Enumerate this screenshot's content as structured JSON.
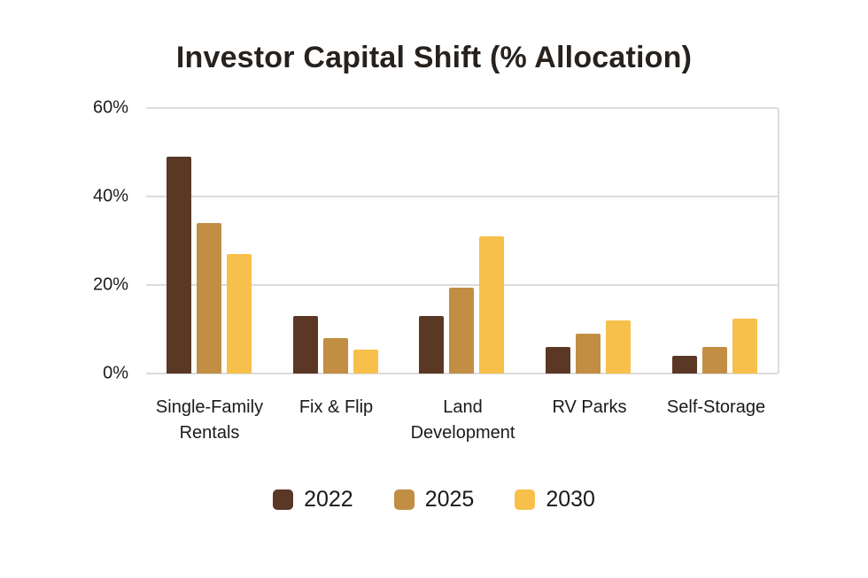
{
  "chart_data": {
    "type": "bar",
    "title": "Investor Capital Shift (% Allocation)",
    "categories": [
      "Single-Family Rentals",
      "Fix & Flip",
      "Land Development",
      "RV Parks",
      "Self-Storage"
    ],
    "series": [
      {
        "name": "2022",
        "color": "#5A3825",
        "values": [
          49,
          13,
          13,
          6,
          4
        ]
      },
      {
        "name": "2025",
        "color": "#C28E43",
        "values": [
          34,
          8,
          19.5,
          9,
          6
        ]
      },
      {
        "name": "2030",
        "color": "#F7C04A",
        "values": [
          27,
          5.5,
          31,
          12,
          12.5
        ]
      }
    ],
    "ylim": [
      0,
      60
    ],
    "yticks": [
      0,
      20,
      40,
      60
    ],
    "ytick_suffix": "%",
    "grid": true,
    "legend_position": "bottom"
  }
}
